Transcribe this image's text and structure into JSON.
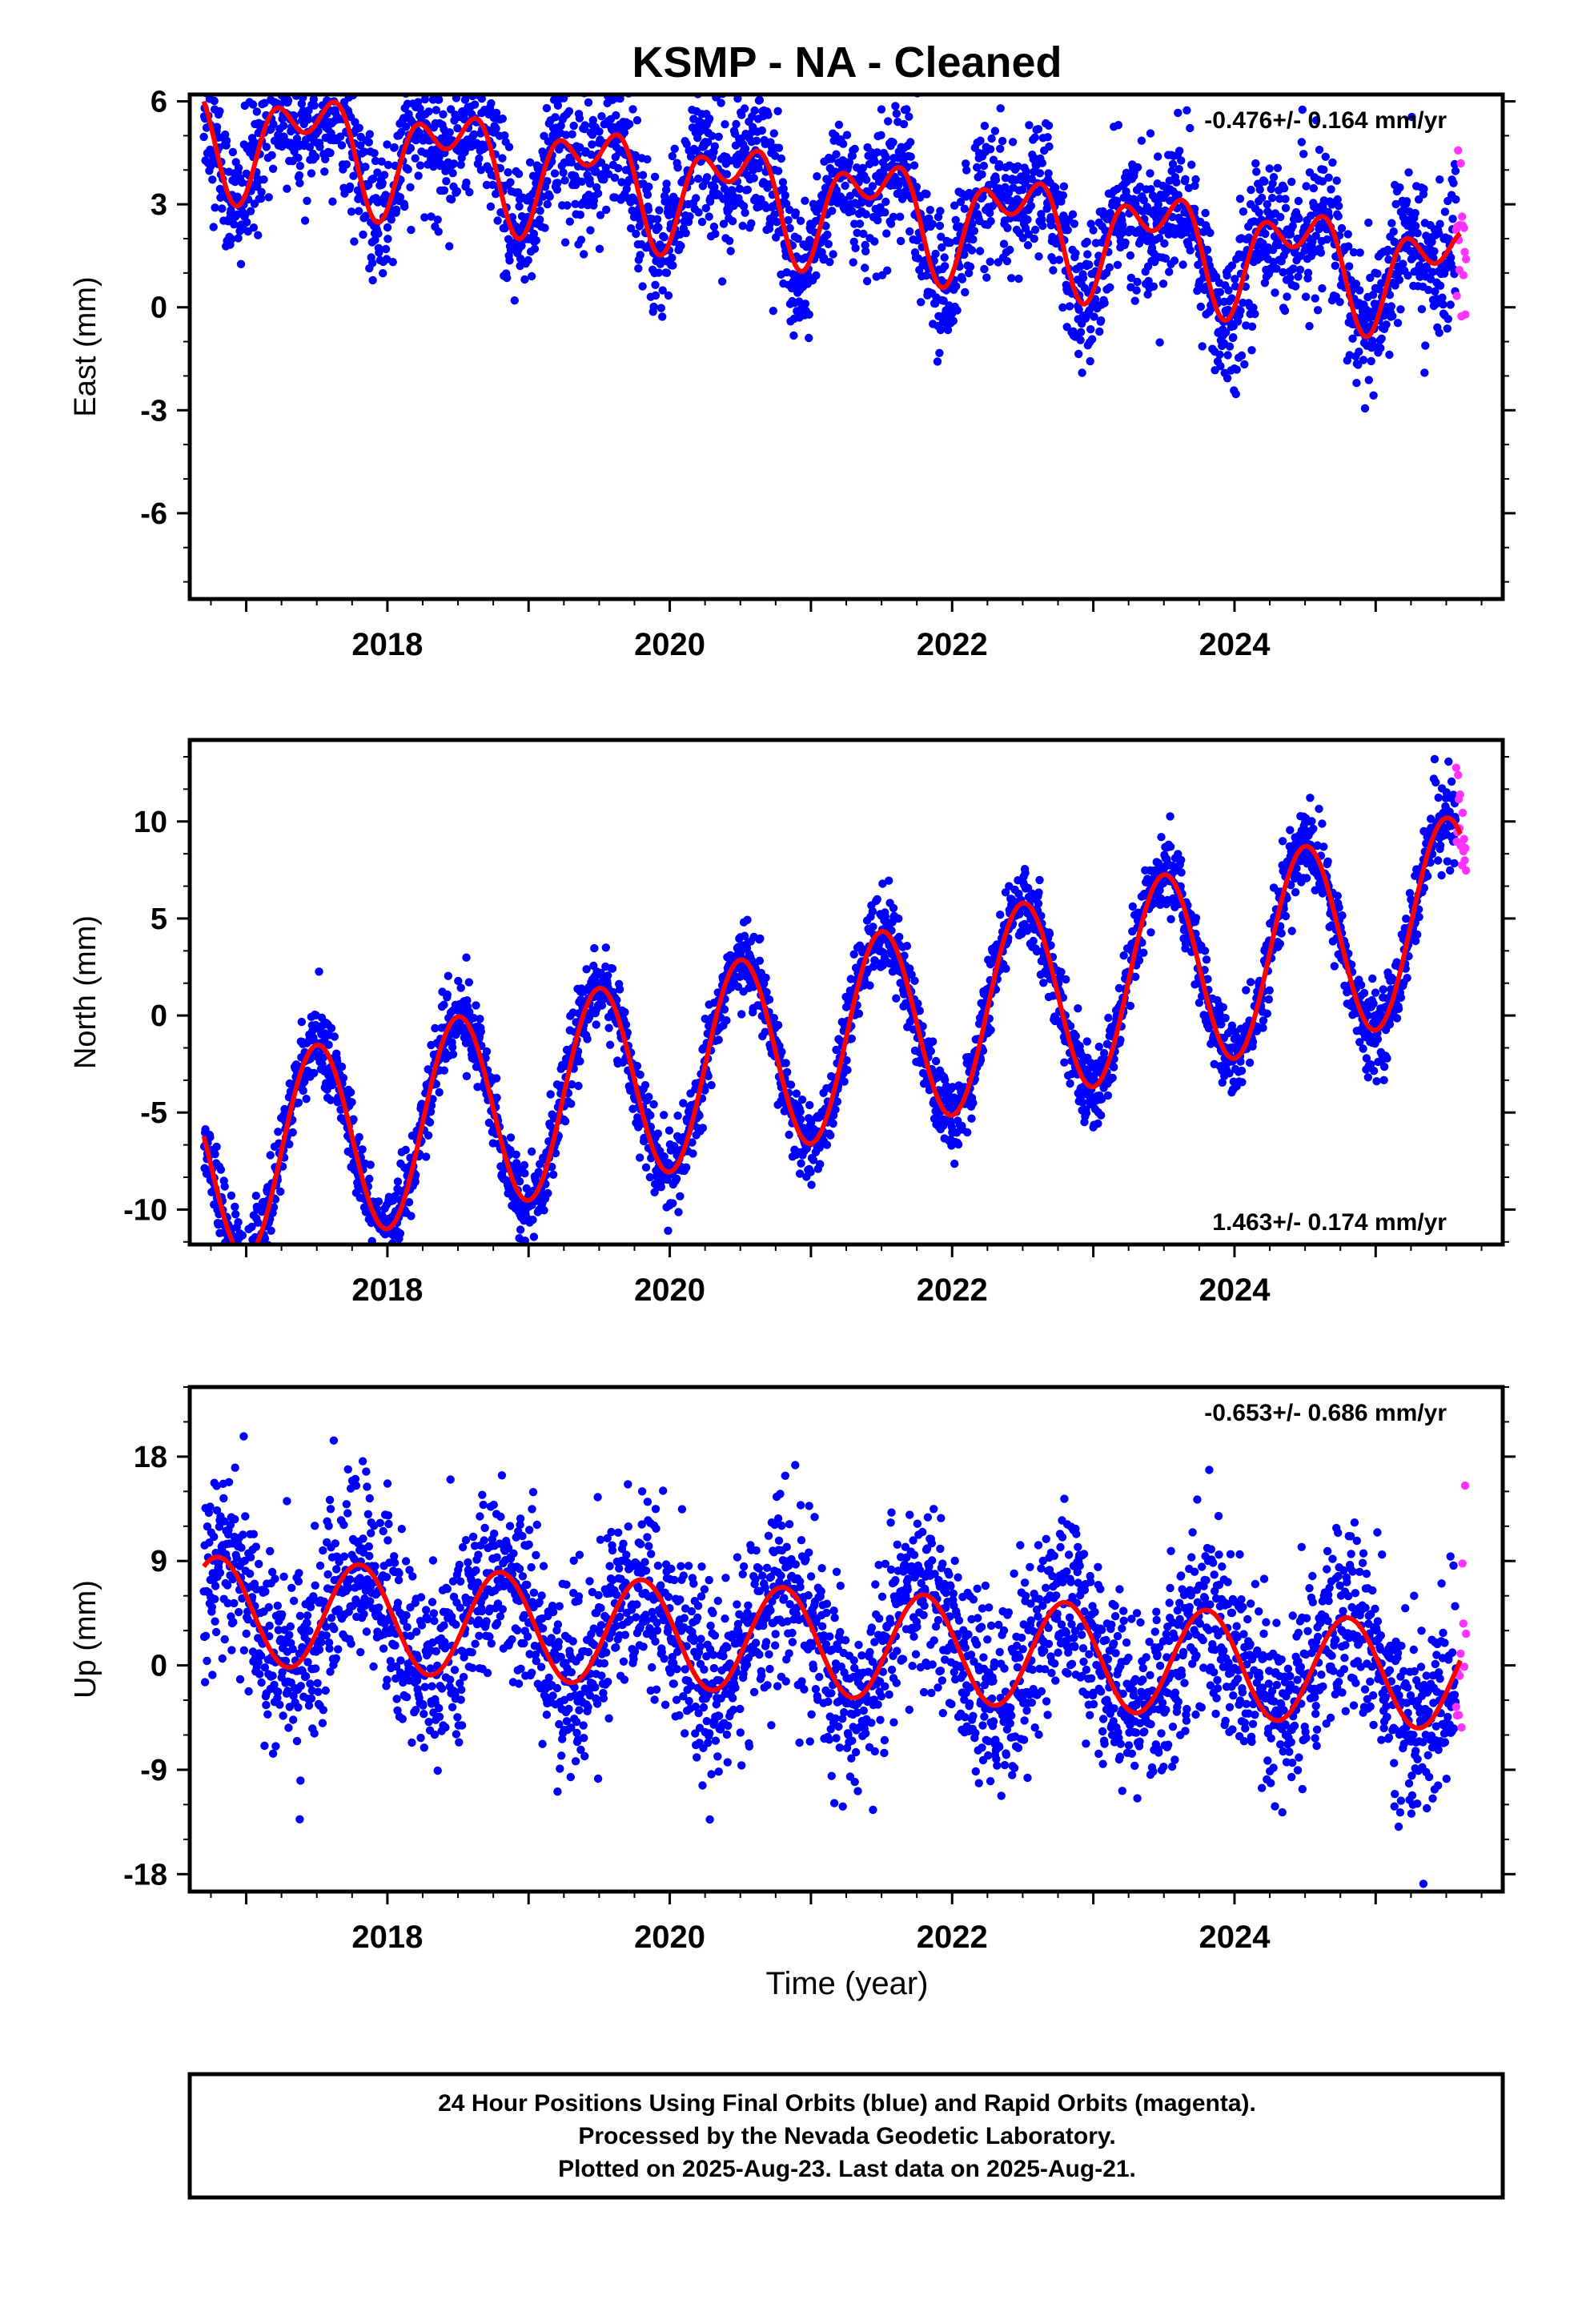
{
  "title": "KSMP  - NA - Cleaned",
  "colors": {
    "final_points": "#0000ff",
    "rapid_points": "#ff33ff",
    "model_curve": "#ff0000",
    "frame": "#000000"
  },
  "x_axis": {
    "label": "Time (year)",
    "ticks": [
      "2018",
      "2020",
      "2022",
      "2024"
    ],
    "range": [
      2016.6,
      2025.9
    ]
  },
  "footer": {
    "line1": "24 Hour Positions Using Final Orbits (blue) and Rapid Orbits (magenta).",
    "line2": "Processed by the Nevada Geodetic Laboratory.",
    "line3": "Plotted on 2025-Aug-23. Last data on 2025-Aug-21."
  },
  "chart_data": [
    {
      "type": "scatter",
      "name": "east",
      "ylabel": "East (mm)",
      "rate_text": "-0.476+/- 0.164 mm/yr",
      "rate_position": "top-right",
      "xlim": [
        2016.6,
        2025.9
      ],
      "ylim": [
        -8.5,
        6.2
      ],
      "yticks": [
        6,
        3,
        0,
        -3,
        -6
      ],
      "ytick_labels": [
        "6",
        "3",
        "0",
        "-3",
        "-6"
      ],
      "model": {
        "offset": 3.1,
        "trend": -0.476,
        "annual_amp": 1.2,
        "annual_phase": 0.2,
        "semi_amp": 0.9,
        "semi_phase": 0.05,
        "x_start": 2016.7,
        "x_end": 2025.6
      },
      "noise_sd": 1.0,
      "final_points_span": [
        2016.7,
        2025.57
      ],
      "rapid_points_span": [
        2025.57,
        2025.64
      ],
      "rapid_point_count": 16
    },
    {
      "type": "scatter",
      "name": "north",
      "ylabel": "North (mm)",
      "rate_text": "1.463+/- 0.174 mm/yr",
      "rate_position": "bottom-right",
      "xlim": [
        2016.6,
        2025.9
      ],
      "ylim": [
        -11.8,
        14.2
      ],
      "yticks": [
        10,
        5,
        0,
        -5,
        -10
      ],
      "ytick_labels": [
        "10",
        "5",
        "0",
        "-5",
        "-10"
      ],
      "model": {
        "offset": -1.5,
        "trend": 1.463,
        "annual_amp": 5.1,
        "annual_phase": 0.25,
        "semi_amp": 0.0,
        "semi_phase": 0.0,
        "x_start": 2016.7,
        "x_end": 2025.6
      },
      "noise_sd": 1.0,
      "final_points_span": [
        2016.7,
        2025.57
      ],
      "rapid_points_span": [
        2025.57,
        2025.64
      ],
      "rapid_point_count": 16
    },
    {
      "type": "scatter",
      "name": "up",
      "ylabel": "Up (mm)",
      "rate_text": "-0.653+/- 0.686 mm/yr",
      "rate_position": "top-right",
      "xlim": [
        2016.6,
        2025.9
      ],
      "ylim": [
        -19.5,
        24.0
      ],
      "yticks": [
        18,
        9,
        0,
        -9,
        -18
      ],
      "ytick_labels": [
        "18",
        "9",
        "0",
        "-9",
        "-18"
      ],
      "model": {
        "offset": 2.0,
        "trend": -0.653,
        "annual_amp": 4.6,
        "annual_phase": 0.55,
        "semi_amp": 0.0,
        "semi_phase": 0.0,
        "x_start": 2016.7,
        "x_end": 2025.6
      },
      "noise_sd": 4.0,
      "final_points_span": [
        2016.7,
        2025.57
      ],
      "rapid_points_span": [
        2025.57,
        2025.64
      ],
      "rapid_point_count": 12
    }
  ]
}
